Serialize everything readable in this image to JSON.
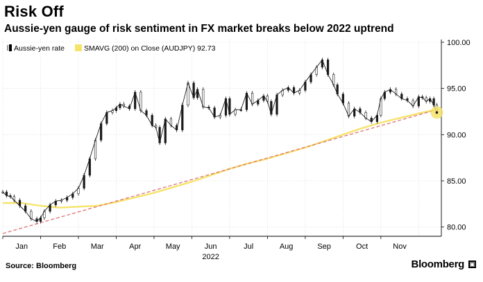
{
  "header": {
    "title": "Risk Off",
    "subtitle": "Aussie-yen gauge of risk sentiment in FX market breaks below 2022 uptrend"
  },
  "footer": {
    "source": "Source: Bloomberg",
    "brand": "Bloomberg",
    "brand_badge": "▣"
  },
  "chart_data": {
    "type": "line",
    "title": "Risk Off",
    "legend": [
      {
        "name": "Aussie-yen rate",
        "prefix": "",
        "color": "#000000"
      },
      {
        "name": "SMAVG (200)",
        "prefix": "",
        "color": "#f5e36a",
        "suffix": "on Close (AUDJPY) 92.73"
      }
    ],
    "legend_text": {
      "series1": "Aussie-yen rate",
      "series2": "SMAVG (200)  on Close (AUDJPY) 92.73"
    },
    "x_tick_labels": [
      "Jan",
      "Feb",
      "Mar",
      "Apr",
      "May",
      "Jun",
      "Jul",
      "Aug",
      "Sep",
      "Oct",
      "Nov"
    ],
    "x_year_label": "2022",
    "y_tick_labels": [
      "100.00",
      "95.00",
      "90.00",
      "85.00",
      "80.00"
    ],
    "y_ticks": [
      100,
      95,
      90,
      85,
      80
    ],
    "ylim": [
      79,
      100.3
    ],
    "xlim": [
      0,
      11.6
    ],
    "colors": {
      "price": "#1a1a1a",
      "sma": "#f5e36a",
      "trend": "#e07a7a",
      "last_marker": "#f5e36a",
      "grid": "#cccccc"
    },
    "series": [
      {
        "name": "Aussie-yen rate",
        "x": [
          0.0,
          0.1,
          0.2,
          0.3,
          0.45,
          0.6,
          0.75,
          0.9,
          1.0,
          1.1,
          1.25,
          1.4,
          1.55,
          1.7,
          1.85,
          2.0,
          2.15,
          2.3,
          2.45,
          2.6,
          2.75,
          2.9,
          3.0,
          3.1,
          3.2,
          3.35,
          3.5,
          3.65,
          3.8,
          3.95,
          4.05,
          4.15,
          4.3,
          4.45,
          4.6,
          4.75,
          4.9,
          5.05,
          5.15,
          5.3,
          5.45,
          5.6,
          5.75,
          5.9,
          6.0,
          6.15,
          6.3,
          6.45,
          6.6,
          6.75,
          6.9,
          7.0,
          7.1,
          7.25,
          7.4,
          7.55,
          7.7,
          7.85,
          8.0,
          8.15,
          8.3,
          8.45,
          8.6,
          8.75,
          8.85,
          9.0,
          9.15,
          9.3,
          9.45,
          9.6,
          9.75,
          9.9,
          10.0,
          10.1,
          10.25,
          10.4,
          10.55,
          10.7,
          10.85,
          11.0,
          11.1,
          11.2,
          11.3,
          11.4,
          11.48
        ],
        "values": [
          83.8,
          83.4,
          83.3,
          82.9,
          82.3,
          81.7,
          80.9,
          80.6,
          81.0,
          81.7,
          82.4,
          82.8,
          82.9,
          83.2,
          83.6,
          84.2,
          85.6,
          87.4,
          89.4,
          91.2,
          92.4,
          92.6,
          92.9,
          93.3,
          93.1,
          92.8,
          94.6,
          92.6,
          92.1,
          91.0,
          90.8,
          89.1,
          91.7,
          91.0,
          90.5,
          93.2,
          95.6,
          94.0,
          94.9,
          93.0,
          92.9,
          91.9,
          92.1,
          93.9,
          92.2,
          92.7,
          92.7,
          94.5,
          93.3,
          93.7,
          94.2,
          93.6,
          92.2,
          94.3,
          94.8,
          95.1,
          94.5,
          94.8,
          95.7,
          96.5,
          97.3,
          98.1,
          96.5,
          95.4,
          94.4,
          93.4,
          92.0,
          92.8,
          92.4,
          91.8,
          91.4,
          92.1,
          93.9,
          94.6,
          94.9,
          94.4,
          93.9,
          93.7,
          93.1,
          94.1,
          94.0,
          93.6,
          93.9,
          93.2,
          92.4
        ]
      },
      {
        "name": "SMAVG (200)",
        "x": [
          0.0,
          0.5,
          1.0,
          1.5,
          2.0,
          2.5,
          3.0,
          3.5,
          4.0,
          4.5,
          5.0,
          5.5,
          6.0,
          6.5,
          7.0,
          7.5,
          8.0,
          8.5,
          9.0,
          9.5,
          10.0,
          10.5,
          11.0,
          11.48
        ],
        "values": [
          82.6,
          82.6,
          82.3,
          82.1,
          82.2,
          82.3,
          82.7,
          83.2,
          83.7,
          84.3,
          84.9,
          85.6,
          86.3,
          86.9,
          87.4,
          88.0,
          88.6,
          89.3,
          90.0,
          90.7,
          91.3,
          91.8,
          92.3,
          92.73
        ]
      },
      {
        "name": "2022 uptrend",
        "x": [
          0.0,
          11.48
        ],
        "values": [
          79.3,
          92.7
        ]
      }
    ]
  }
}
